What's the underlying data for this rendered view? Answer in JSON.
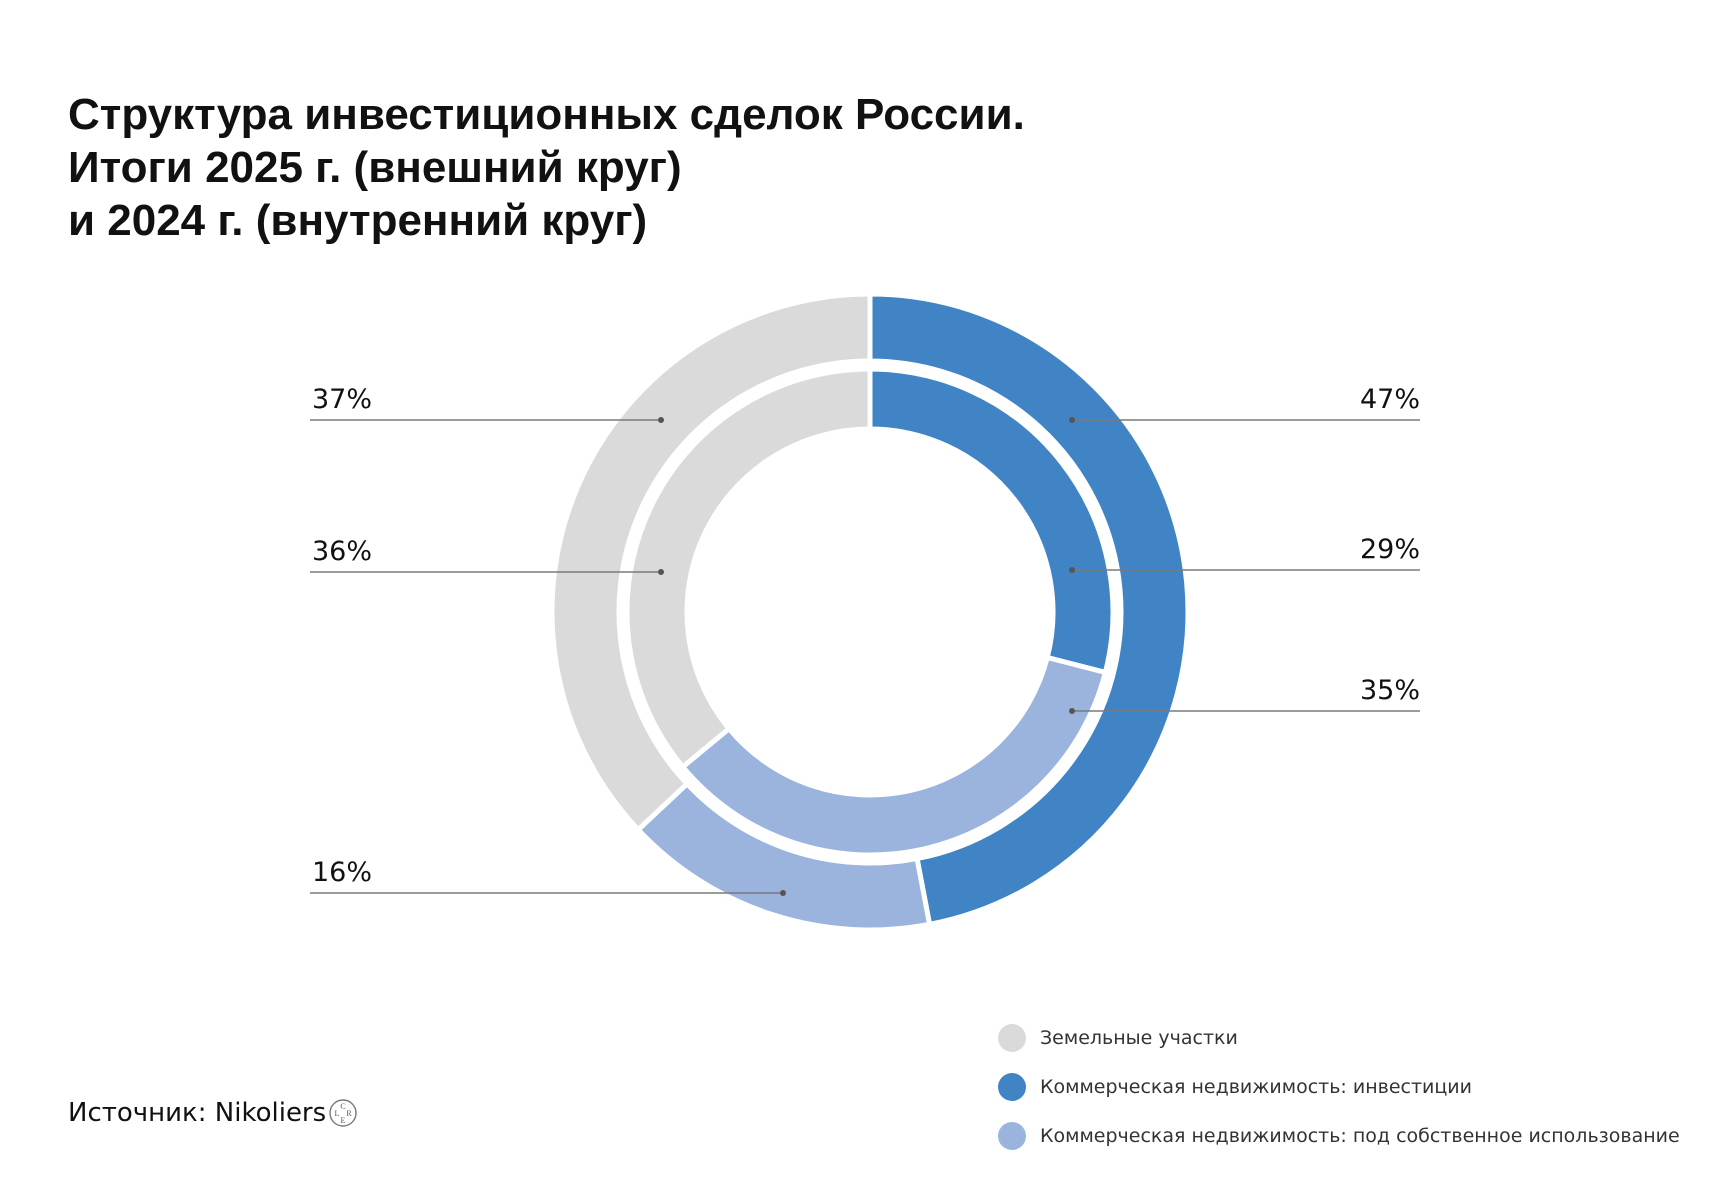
{
  "title": {
    "line1": "Структура инвестиционных сделок России.",
    "line2": "Итоги 2025 г. (внешний круг)",
    "line3": "и 2024 г. (внутренний круг)"
  },
  "chart_data": {
    "type": "pie",
    "title": "Структура инвестиционных сделок России. Итоги 2025 г. (внешний круг) и 2024 г. (внутренний круг)",
    "categories": [
      "Коммерческая недвижимость: инвестиции",
      "Коммерческая недвижимость: под собственное использование",
      "Земельные участки"
    ],
    "series": [
      {
        "name": "Итоги 2025 г. (внешний круг)",
        "values": [
          47,
          16,
          37
        ],
        "value_labels": [
          "47%",
          "16%",
          "37%"
        ]
      },
      {
        "name": "2024 г. (внутренний круг)",
        "values": [
          29,
          35,
          36
        ],
        "value_labels": [
          "29%",
          "35%",
          "36%"
        ]
      }
    ],
    "colors": [
      "#4184c6",
      "#9ab4de",
      "#dadada"
    ],
    "legend_position": "bottom-right"
  },
  "legend": {
    "items": [
      {
        "label": "Земельные участки",
        "color": "#dadada"
      },
      {
        "label": "Коммерческая недвижимость: инвестиции",
        "color": "#4184c6"
      },
      {
        "label": "Коммерческая недвижимость: под собственное использование",
        "color": "#9ab4de"
      }
    ]
  },
  "source": {
    "label": "Источник: Nikoliers",
    "logo_letters": "CRE"
  }
}
